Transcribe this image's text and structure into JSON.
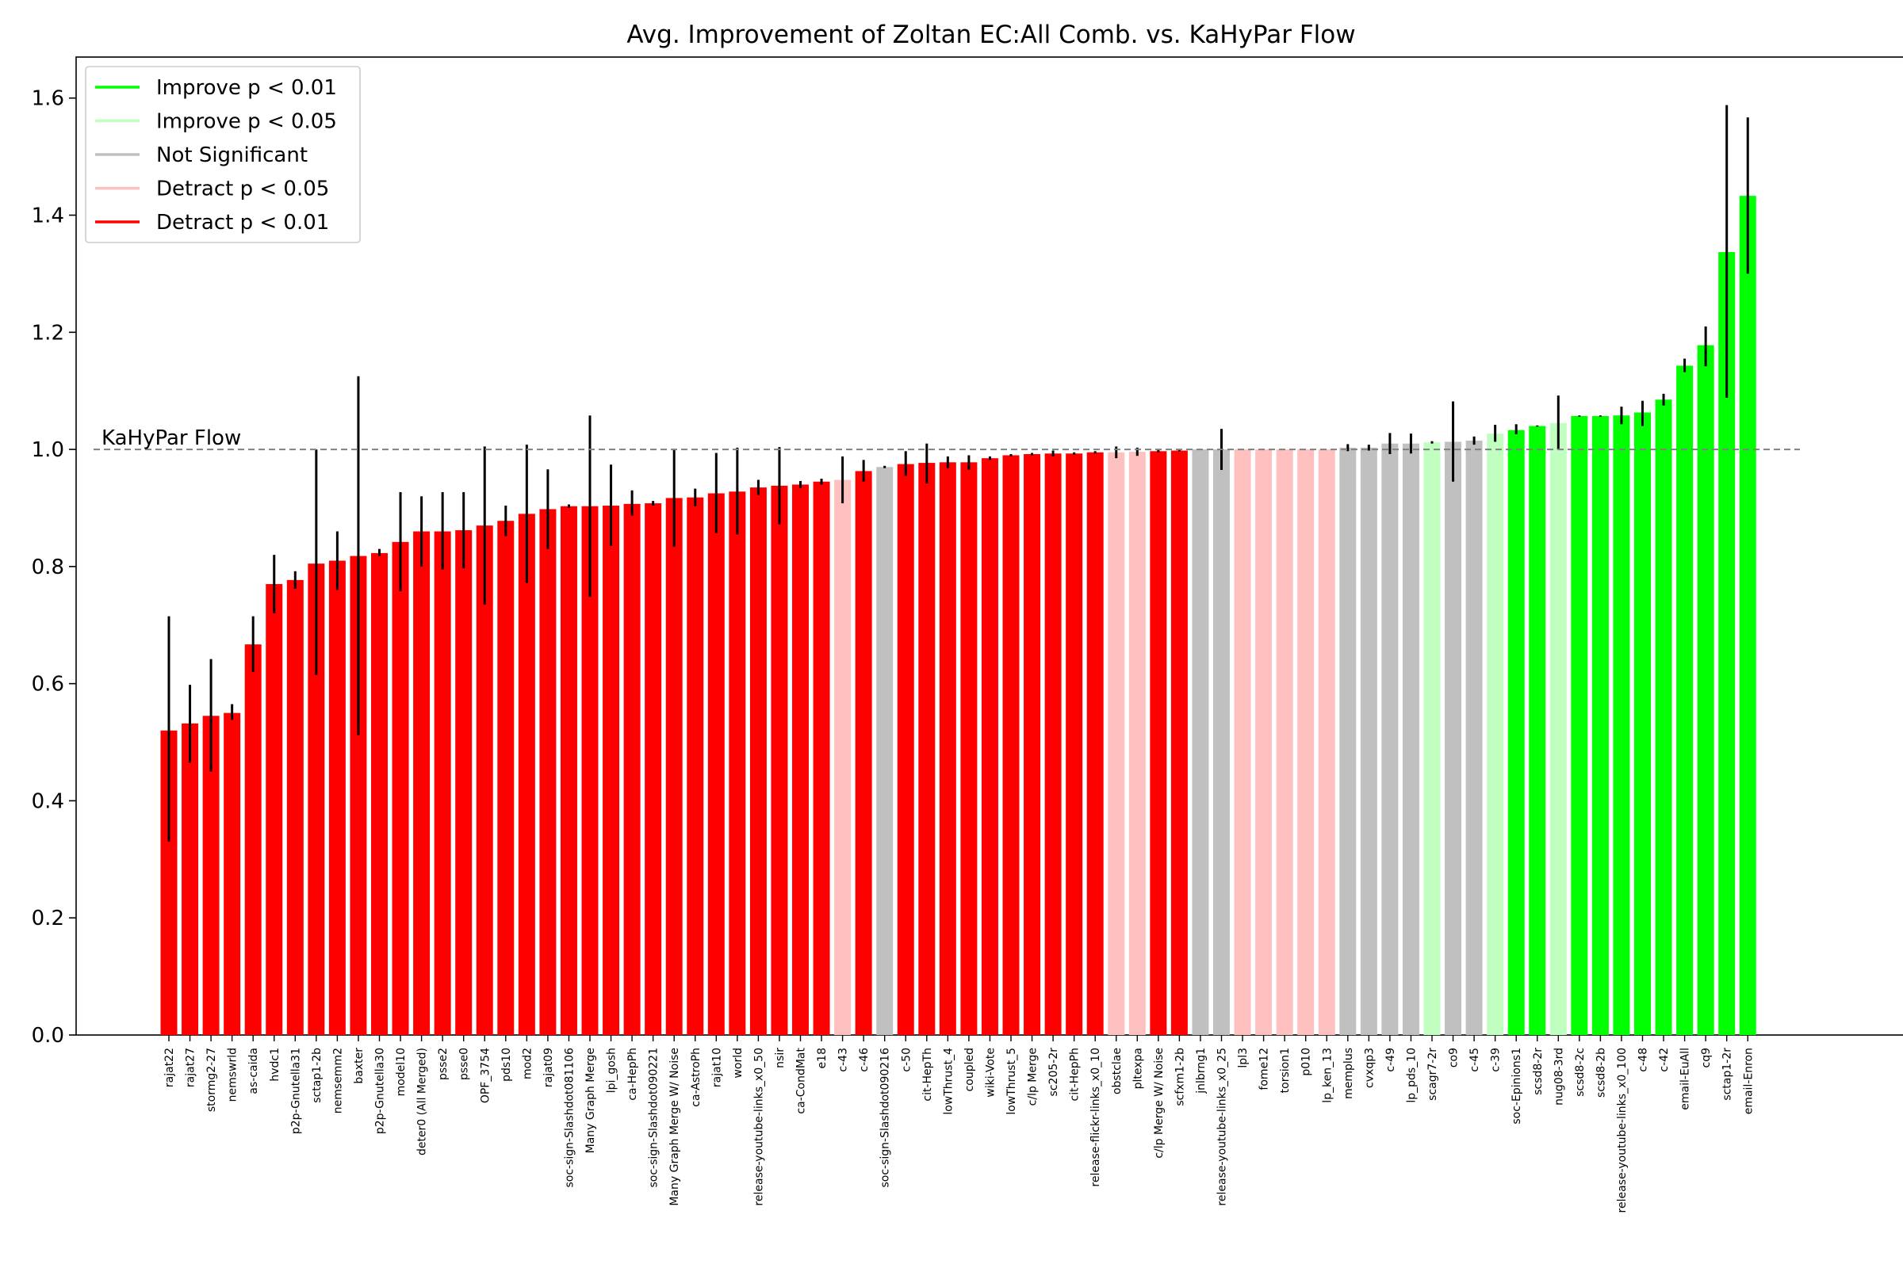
{
  "chart_data": {
    "type": "bar",
    "title": "Avg. Improvement of Zoltan EC:All Comb. vs. KaHyPar Flow",
    "xlabel": "",
    "ylabel": "",
    "ylim": [
      0,
      1.67
    ],
    "yticks": [
      0.0,
      0.2,
      0.4,
      0.6,
      0.8,
      1.0,
      1.2,
      1.4,
      1.6
    ],
    "grid": false,
    "legend_position": "top-left",
    "reference_line": {
      "value": 1.0,
      "label": "KaHyPar Flow",
      "color": "#808080",
      "style": "dashed"
    },
    "legend": [
      {
        "key": "improve01",
        "label": "Improve p < 0.01",
        "color": "#00ff00"
      },
      {
        "key": "improve05",
        "label": "Improve p < 0.05",
        "color": "#c0ffc0"
      },
      {
        "key": "ns",
        "label": "Not Significant",
        "color": "#c0c0c0"
      },
      {
        "key": "detract05",
        "label": "Detract p < 0.05",
        "color": "#ffc0c0"
      },
      {
        "key": "detract01",
        "label": "Detract p < 0.01",
        "color": "#ff0000"
      }
    ],
    "bars": [
      {
        "label": "rajat22",
        "value": 0.52,
        "err": [
          0.33,
          0.715
        ],
        "sig": "detract01"
      },
      {
        "label": "rajat27",
        "value": 0.532,
        "err": [
          0.465,
          0.598
        ],
        "sig": "detract01"
      },
      {
        "label": "stormg2-27",
        "value": 0.545,
        "err": [
          0.45,
          0.642
        ],
        "sig": "detract01"
      },
      {
        "label": "nemswrld",
        "value": 0.55,
        "err": [
          0.538,
          0.565
        ],
        "sig": "detract01"
      },
      {
        "label": "as-caida",
        "value": 0.667,
        "err": [
          0.62,
          0.715
        ],
        "sig": "detract01"
      },
      {
        "label": "hvdc1",
        "value": 0.77,
        "err": [
          0.72,
          0.82
        ],
        "sig": "detract01"
      },
      {
        "label": "p2p-Gnutella31",
        "value": 0.777,
        "err": [
          0.762,
          0.792
        ],
        "sig": "detract01"
      },
      {
        "label": "sctap1-2b",
        "value": 0.805,
        "err": [
          0.615,
          1.0
        ],
        "sig": "detract01"
      },
      {
        "label": "nemsemm2",
        "value": 0.81,
        "err": [
          0.76,
          0.86
        ],
        "sig": "detract01"
      },
      {
        "label": "baxter",
        "value": 0.818,
        "err": [
          0.512,
          1.125
        ],
        "sig": "detract01"
      },
      {
        "label": "p2p-Gnutella30",
        "value": 0.823,
        "err": [
          0.818,
          0.83
        ],
        "sig": "detract01"
      },
      {
        "label": "model10",
        "value": 0.842,
        "err": [
          0.758,
          0.927
        ],
        "sig": "detract01"
      },
      {
        "label": "deter0 (All Merged)",
        "value": 0.86,
        "err": [
          0.8,
          0.92
        ],
        "sig": "detract01"
      },
      {
        "label": "psse2",
        "value": 0.86,
        "err": [
          0.795,
          0.927
        ],
        "sig": "detract01"
      },
      {
        "label": "psse0",
        "value": 0.862,
        "err": [
          0.797,
          0.927
        ],
        "sig": "detract01"
      },
      {
        "label": "OPF_3754",
        "value": 0.87,
        "err": [
          0.735,
          1.005
        ],
        "sig": "detract01"
      },
      {
        "label": "pds10",
        "value": 0.878,
        "err": [
          0.852,
          0.904
        ],
        "sig": "detract01"
      },
      {
        "label": "mod2",
        "value": 0.89,
        "err": [
          0.772,
          1.008
        ],
        "sig": "detract01"
      },
      {
        "label": "rajat09",
        "value": 0.898,
        "err": [
          0.83,
          0.966
        ],
        "sig": "detract01"
      },
      {
        "label": "soc-sign-Slashdot081106",
        "value": 0.903,
        "err": [
          0.9,
          0.906
        ],
        "sig": "detract01"
      },
      {
        "label": "Many Graph Merge",
        "value": 0.903,
        "err": [
          0.748,
          1.058
        ],
        "sig": "detract01"
      },
      {
        "label": "lpi_gosh",
        "value": 0.904,
        "err": [
          0.835,
          0.974
        ],
        "sig": "detract01"
      },
      {
        "label": "ca-HepPh",
        "value": 0.907,
        "err": [
          0.887,
          0.93
        ],
        "sig": "detract01"
      },
      {
        "label": "soc-sign-Slashdot090221",
        "value": 0.908,
        "err": [
          0.904,
          0.912
        ],
        "sig": "detract01"
      },
      {
        "label": "Many Graph Merge W/ Noise",
        "value": 0.917,
        "err": [
          0.834,
          1.0
        ],
        "sig": "detract01"
      },
      {
        "label": "ca-AstroPh",
        "value": 0.918,
        "err": [
          0.903,
          0.933
        ],
        "sig": "detract01"
      },
      {
        "label": "rajat10",
        "value": 0.925,
        "err": [
          0.857,
          0.994
        ],
        "sig": "detract01"
      },
      {
        "label": "world",
        "value": 0.928,
        "err": [
          0.855,
          1.003
        ],
        "sig": "detract01"
      },
      {
        "label": "release-youtube-links_x0_50",
        "value": 0.935,
        "err": [
          0.922,
          0.948
        ],
        "sig": "detract01"
      },
      {
        "label": "nsir",
        "value": 0.938,
        "err": [
          0.872,
          1.004
        ],
        "sig": "detract01"
      },
      {
        "label": "ca-CondMat",
        "value": 0.94,
        "err": [
          0.934,
          0.946
        ],
        "sig": "detract01"
      },
      {
        "label": "e18",
        "value": 0.945,
        "err": [
          0.94,
          0.95
        ],
        "sig": "detract01"
      },
      {
        "label": "c-43",
        "value": 0.948,
        "err": [
          0.908,
          0.988
        ],
        "sig": "detract05"
      },
      {
        "label": "c-46",
        "value": 0.963,
        "err": [
          0.945,
          0.982
        ],
        "sig": "detract01"
      },
      {
        "label": "soc-sign-Slashdot090216",
        "value": 0.97,
        "err": [
          0.968,
          0.972
        ],
        "sig": "ns"
      },
      {
        "label": "c-50",
        "value": 0.975,
        "err": [
          0.955,
          0.997
        ],
        "sig": "detract01"
      },
      {
        "label": "cit-HepTh",
        "value": 0.977,
        "err": [
          0.942,
          1.01
        ],
        "sig": "detract01"
      },
      {
        "label": "lowThrust_4",
        "value": 0.978,
        "err": [
          0.968,
          0.988
        ],
        "sig": "detract01"
      },
      {
        "label": "coupled",
        "value": 0.978,
        "err": [
          0.965,
          0.99
        ],
        "sig": "detract01"
      },
      {
        "label": "wiki-Vote",
        "value": 0.985,
        "err": [
          0.982,
          0.988
        ],
        "sig": "detract01"
      },
      {
        "label": "lowThrust_5",
        "value": 0.99,
        "err": [
          0.988,
          0.992
        ],
        "sig": "detract01"
      },
      {
        "label": "c/lp Merge",
        "value": 0.992,
        "err": [
          0.99,
          0.994
        ],
        "sig": "detract01"
      },
      {
        "label": "sc205-2r",
        "value": 0.993,
        "err": [
          0.988,
          0.998
        ],
        "sig": "detract01"
      },
      {
        "label": "cit-HepPh",
        "value": 0.993,
        "err": [
          0.991,
          0.995
        ],
        "sig": "detract01"
      },
      {
        "label": "release-flickr-links_x0_10",
        "value": 0.995,
        "err": [
          0.993,
          0.997
        ],
        "sig": "detract01"
      },
      {
        "label": "obstclae",
        "value": 0.995,
        "err": [
          0.985,
          1.005
        ],
        "sig": "detract05"
      },
      {
        "label": "pltexpa",
        "value": 0.996,
        "err": [
          0.989,
          1.003
        ],
        "sig": "detract05"
      },
      {
        "label": "c/lp Merge W/ Noise",
        "value": 0.997,
        "err": [
          0.995,
          0.999
        ],
        "sig": "detract01"
      },
      {
        "label": "scfxm1-2b",
        "value": 0.998,
        "err": [
          0.997,
          0.999
        ],
        "sig": "detract01"
      },
      {
        "label": "jnlbrng1",
        "value": 1.0,
        "err": [
          1.0,
          1.0
        ],
        "sig": "ns"
      },
      {
        "label": "release-youtube-links_x0_25",
        "value": 1.0,
        "err": [
          0.965,
          1.035
        ],
        "sig": "ns"
      },
      {
        "label": "lpl3",
        "value": 1.0,
        "err": [
          1.0,
          1.0
        ],
        "sig": "detract05"
      },
      {
        "label": "fome12",
        "value": 1.0,
        "err": [
          1.0,
          1.0
        ],
        "sig": "detract05"
      },
      {
        "label": "torsion1",
        "value": 1.0,
        "err": [
          1.0,
          1.0
        ],
        "sig": "detract05"
      },
      {
        "label": "p010",
        "value": 1.0,
        "err": [
          1.0,
          1.0
        ],
        "sig": "detract05"
      },
      {
        "label": "lp_ken_13",
        "value": 1.0,
        "err": [
          1.0,
          1.0
        ],
        "sig": "detract05"
      },
      {
        "label": "memplus",
        "value": 1.003,
        "err": [
          0.997,
          1.009
        ],
        "sig": "ns"
      },
      {
        "label": "cvxqp3",
        "value": 1.003,
        "err": [
          0.998,
          1.008
        ],
        "sig": "ns"
      },
      {
        "label": "c-49",
        "value": 1.01,
        "err": [
          0.992,
          1.028
        ],
        "sig": "ns"
      },
      {
        "label": "lp_pds_10",
        "value": 1.01,
        "err": [
          0.993,
          1.027
        ],
        "sig": "ns"
      },
      {
        "label": "scagr7-2r",
        "value": 1.012,
        "err": [
          1.01,
          1.014
        ],
        "sig": "improve05"
      },
      {
        "label": "co9",
        "value": 1.013,
        "err": [
          0.945,
          1.082
        ],
        "sig": "ns"
      },
      {
        "label": "c-45",
        "value": 1.015,
        "err": [
          1.008,
          1.022
        ],
        "sig": "ns"
      },
      {
        "label": "c-39",
        "value": 1.027,
        "err": [
          1.013,
          1.042
        ],
        "sig": "improve05"
      },
      {
        "label": "soc-Epinions1",
        "value": 1.033,
        "err": [
          1.026,
          1.043
        ],
        "sig": "improve01"
      },
      {
        "label": "scsd8-2r",
        "value": 1.04,
        "err": [
          1.039,
          1.041
        ],
        "sig": "improve01"
      },
      {
        "label": "nug08-3rd",
        "value": 1.045,
        "err": [
          1.0,
          1.092
        ],
        "sig": "improve05"
      },
      {
        "label": "scsd8-2c",
        "value": 1.057,
        "err": [
          1.056,
          1.058
        ],
        "sig": "improve01"
      },
      {
        "label": "scsd8-2b",
        "value": 1.057,
        "err": [
          1.056,
          1.058
        ],
        "sig": "improve01"
      },
      {
        "label": "release-youtube-links_x0_100",
        "value": 1.058,
        "err": [
          1.043,
          1.073
        ],
        "sig": "improve01"
      },
      {
        "label": "c-48",
        "value": 1.063,
        "err": [
          1.04,
          1.083
        ],
        "sig": "improve01"
      },
      {
        "label": "c-42",
        "value": 1.085,
        "err": [
          1.075,
          1.095
        ],
        "sig": "improve01"
      },
      {
        "label": "email-EuAll",
        "value": 1.143,
        "err": [
          1.132,
          1.155
        ],
        "sig": "improve01"
      },
      {
        "label": "cq9",
        "value": 1.178,
        "err": [
          1.142,
          1.21
        ],
        "sig": "improve01"
      },
      {
        "label": "sctap1-2r",
        "value": 1.337,
        "err": [
          1.088,
          1.588
        ],
        "sig": "improve01"
      },
      {
        "label": "email-Enron",
        "value": 1.433,
        "err": [
          1.3,
          1.567
        ],
        "sig": "improve01"
      }
    ]
  }
}
